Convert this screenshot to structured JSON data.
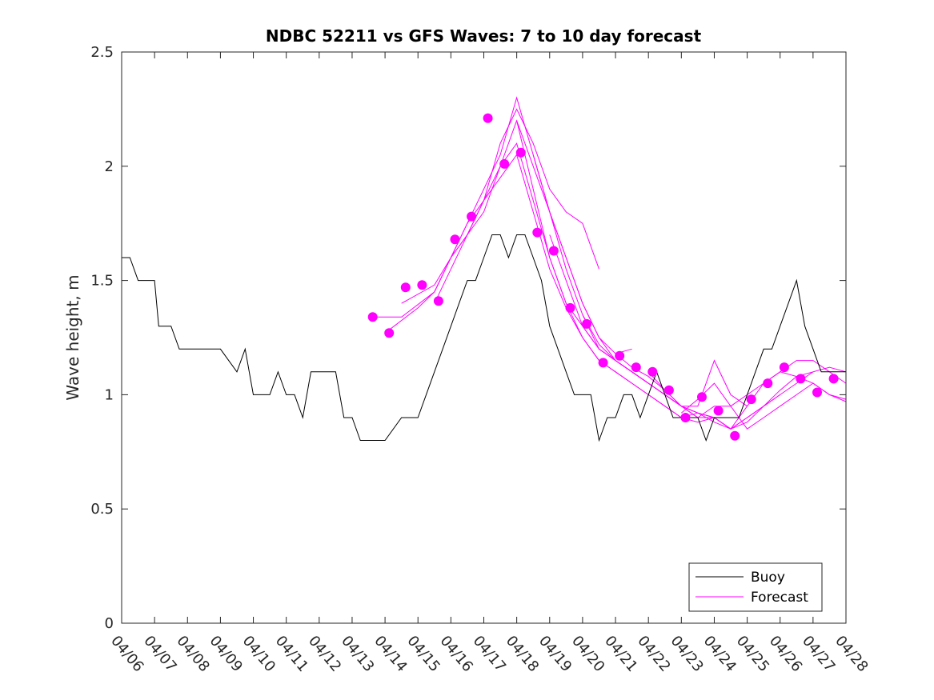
{
  "chart_data": {
    "type": "line",
    "title": "NDBC 52211 vs GFS Waves: 7 to 10 day forecast",
    "xlabel": "",
    "ylabel": "Wave height, m",
    "xlim": [
      "04/06",
      "04/28"
    ],
    "ylim": [
      0,
      2.5
    ],
    "x_ticks": [
      "04/06",
      "04/07",
      "04/08",
      "04/09",
      "04/10",
      "04/11",
      "04/12",
      "04/13",
      "04/14",
      "04/15",
      "04/16",
      "04/17",
      "04/18",
      "04/19",
      "04/20",
      "04/21",
      "04/22",
      "04/23",
      "04/24",
      "04/25",
      "04/26",
      "04/27",
      "04/28"
    ],
    "y_ticks": [
      "0",
      "0.5",
      "1",
      "1.5",
      "2",
      "2.5"
    ],
    "grid": false,
    "legend": {
      "position": "bottom-right",
      "entries": [
        "Buoy",
        "Forecast"
      ]
    },
    "colors": {
      "buoy": "#000000",
      "forecast": "#ff00ff"
    },
    "series": [
      {
        "name": "Buoy",
        "style": "line",
        "x": [
          "04/06 00:00",
          "04/06 06:00",
          "04/06 12:00",
          "04/07 00:00",
          "04/07 03:00",
          "04/07 12:00",
          "04/07 18:00",
          "04/08 00:00",
          "04/08 06:00",
          "04/08 12:00",
          "04/09 00:00",
          "04/09 12:00",
          "04/09 18:00",
          "04/10 00:00",
          "04/10 12:00",
          "04/10 18:00",
          "04/11 00:00",
          "04/11 06:00",
          "04/11 12:00",
          "04/11 18:00",
          "04/12 00:00",
          "04/12 12:00",
          "04/12 18:00",
          "04/13 00:00",
          "04/13 06:00",
          "04/13 12:00",
          "04/13 18:00",
          "04/14 00:00",
          "04/14 12:00",
          "04/14 18:00",
          "04/15 00:00",
          "04/15 06:00",
          "04/15 12:00",
          "04/15 18:00",
          "04/16 00:00",
          "04/16 06:00",
          "04/16 12:00",
          "04/16 18:00",
          "04/17 00:00",
          "04/17 06:00",
          "04/17 12:00",
          "04/17 18:00",
          "04/18 00:00",
          "04/18 06:00",
          "04/18 12:00",
          "04/18 18:00",
          "04/19 00:00",
          "04/19 06:00",
          "04/19 12:00",
          "04/19 18:00",
          "04/20 00:00",
          "04/20 06:00",
          "04/20 12:00",
          "04/20 18:00",
          "04/21 00:00",
          "04/21 06:00",
          "04/21 12:00",
          "04/21 18:00",
          "04/22 00:00",
          "04/22 06:00",
          "04/22 12:00",
          "04/22 18:00",
          "04/23 00:00",
          "04/23 06:00",
          "04/23 12:00",
          "04/23 18:00",
          "04/24 00:00",
          "04/24 06:00",
          "04/24 12:00",
          "04/24 18:00",
          "04/25 00:00",
          "04/25 06:00",
          "04/25 12:00",
          "04/25 18:00",
          "04/26 00:00",
          "04/26 06:00",
          "04/26 12:00",
          "04/26 18:00",
          "04/27 00:00",
          "04/27 06:00",
          "04/27 12:00",
          "04/27 18:00",
          "04/28 00:00"
        ],
        "y": [
          1.6,
          1.6,
          1.5,
          1.5,
          1.3,
          1.3,
          1.2,
          1.2,
          1.2,
          1.2,
          1.2,
          1.1,
          1.2,
          1.0,
          1.0,
          1.1,
          1.0,
          1.0,
          0.9,
          1.1,
          1.1,
          1.1,
          0.9,
          0.9,
          0.8,
          0.8,
          0.8,
          0.8,
          0.9,
          0.9,
          0.9,
          1.0,
          1.1,
          1.2,
          1.3,
          1.4,
          1.5,
          1.5,
          1.6,
          1.7,
          1.7,
          1.6,
          1.7,
          1.7,
          1.6,
          1.5,
          1.3,
          1.2,
          1.1,
          1.0,
          1.0,
          1.0,
          0.8,
          0.9,
          0.9,
          1.0,
          1.0,
          0.9,
          1.0,
          1.1,
          1.0,
          0.9,
          0.9,
          0.9,
          0.9,
          0.8,
          0.9,
          0.9,
          0.9,
          0.9,
          1.0,
          1.1,
          1.2,
          1.2,
          1.3,
          1.4,
          1.5,
          1.3,
          1.2,
          1.1,
          1.1,
          1.1,
          1.1
        ]
      },
      {
        "name": "Forecast",
        "style": "markers",
        "x": [
          "04/13 15:00",
          "04/14 03:00",
          "04/14 15:00",
          "04/15 03:00",
          "04/15 15:00",
          "04/16 03:00",
          "04/16 15:00",
          "04/17 03:00",
          "04/17 15:00",
          "04/18 03:00",
          "04/18 15:00",
          "04/19 03:00",
          "04/19 15:00",
          "04/20 03:00",
          "04/20 15:00",
          "04/21 03:00",
          "04/21 15:00",
          "04/22 03:00",
          "04/22 15:00",
          "04/23 03:00",
          "04/23 15:00",
          "04/24 03:00",
          "04/24 15:00",
          "04/25 03:00",
          "04/25 15:00",
          "04/26 03:00",
          "04/26 15:00",
          "04/27 03:00",
          "04/27 15:00"
        ],
        "y": [
          1.34,
          1.27,
          1.47,
          1.48,
          1.41,
          1.68,
          1.78,
          2.21,
          2.01,
          2.06,
          1.71,
          1.63,
          1.38,
          1.31,
          1.14,
          1.17,
          1.12,
          1.1,
          1.02,
          0.9,
          0.99,
          0.93,
          0.82,
          0.98,
          1.05,
          1.12,
          1.07,
          1.01,
          1.07
        ]
      }
    ],
    "forecast_runs": [
      {
        "x": [
          "04/13 15:00",
          "04/14 12:00",
          "04/15 12:00",
          "04/16 00:00",
          "04/16 12:00",
          "04/17 00:00",
          "04/17 12:00",
          "04/18 00:00",
          "04/18 12:00",
          "04/19 00:00",
          "04/19 12:00",
          "04/20 00:00",
          "04/20 12:00"
        ],
        "y": [
          1.34,
          1.34,
          1.45,
          1.6,
          1.7,
          1.85,
          2.1,
          2.25,
          2.1,
          1.9,
          1.8,
          1.75,
          1.55
        ]
      },
      {
        "x": [
          "04/14 00:00",
          "04/15 00:00",
          "04/15 12:00",
          "04/16 00:00",
          "04/16 12:00",
          "04/17 00:00",
          "04/17 12:00",
          "04/18 00:00",
          "04/18 12:00",
          "04/19 00:00",
          "04/19 12:00",
          "04/20 00:00",
          "04/20 12:00",
          "04/21 00:00",
          "04/21 12:00"
        ],
        "y": [
          1.27,
          1.38,
          1.45,
          1.6,
          1.75,
          1.9,
          2.05,
          2.3,
          2.05,
          1.8,
          1.6,
          1.4,
          1.25,
          1.18,
          1.2
        ]
      },
      {
        "x": [
          "04/14 12:00",
          "04/15 12:00",
          "04/16 00:00",
          "04/16 12:00",
          "04/17 00:00",
          "04/17 12:00",
          "04/18 00:00",
          "04/18 12:00",
          "04/19 00:00",
          "04/19 12:00",
          "04/20 00:00",
          "04/20 12:00",
          "04/21 00:00",
          "04/21 12:00",
          "04/22 00:00",
          "04/22 12:00"
        ],
        "y": [
          1.4,
          1.48,
          1.6,
          1.7,
          1.85,
          2.0,
          2.2,
          2.0,
          1.8,
          1.6,
          1.4,
          1.25,
          1.15,
          1.1,
          1.05,
          1.0
        ]
      },
      {
        "x": [
          "04/15 12:00",
          "04/16 00:00",
          "04/16 12:00",
          "04/17 00:00",
          "04/17 12:00",
          "04/18 00:00",
          "04/18 12:00",
          "04/19 00:00",
          "04/19 12:00",
          "04/20 00:00",
          "04/20 12:00",
          "04/21 00:00",
          "04/21 12:00",
          "04/22 00:00",
          "04/22 12:00",
          "04/23 00:00",
          "04/23 12:00"
        ],
        "y": [
          1.4,
          1.55,
          1.7,
          1.8,
          2.0,
          2.1,
          1.85,
          1.6,
          1.4,
          1.25,
          1.15,
          1.1,
          1.05,
          1.0,
          0.95,
          0.9,
          0.92
        ]
      },
      {
        "x": [
          "04/16 00:00",
          "04/16 12:00",
          "04/17 00:00",
          "04/17 12:00",
          "04/18 00:00",
          "04/18 12:00",
          "04/19 00:00",
          "04/19 12:00",
          "04/20 00:00",
          "04/20 12:00",
          "04/21 00:00",
          "04/21 12:00",
          "04/22 00:00",
          "04/22 12:00",
          "04/23 00:00",
          "04/23 12:00",
          "04/24 00:00"
        ],
        "y": [
          1.6,
          1.75,
          1.85,
          1.95,
          2.05,
          1.8,
          1.55,
          1.38,
          1.25,
          1.15,
          1.1,
          1.05,
          1.0,
          0.95,
          0.9,
          0.88,
          0.9
        ]
      },
      {
        "x": [
          "04/18 00:00",
          "04/18 12:00",
          "04/19 00:00",
          "04/19 12:00",
          "04/20 00:00",
          "04/20 12:00",
          "04/21 00:00",
          "04/21 12:00",
          "04/22 00:00",
          "04/22 12:00",
          "04/23 00:00",
          "04/23 12:00",
          "04/24 00:00",
          "04/24 12:00",
          "04/25 00:00"
        ],
        "y": [
          2.2,
          1.9,
          1.6,
          1.4,
          1.3,
          1.2,
          1.15,
          1.1,
          1.05,
          1.0,
          0.95,
          0.95,
          1.15,
          1.0,
          0.95
        ]
      },
      {
        "x": [
          "04/18 12:00",
          "04/19 00:00",
          "04/19 12:00",
          "04/20 00:00",
          "04/20 12:00",
          "04/21 00:00",
          "04/21 12:00",
          "04/22 00:00",
          "04/22 12:00",
          "04/23 00:00",
          "04/23 12:00",
          "04/24 00:00",
          "04/24 12:00",
          "04/25 00:00",
          "04/25 12:00",
          "04/26 00:00"
        ],
        "y": [
          2.05,
          1.8,
          1.55,
          1.35,
          1.22,
          1.15,
          1.1,
          1.05,
          1.0,
          0.95,
          0.92,
          0.88,
          0.85,
          0.9,
          0.95,
          1.0
        ]
      },
      {
        "x": [
          "04/19 00:00",
          "04/19 12:00",
          "04/20 00:00",
          "04/20 12:00",
          "04/21 00:00",
          "04/21 12:00",
          "04/22 00:00",
          "04/22 12:00",
          "04/23 00:00",
          "04/23 12:00",
          "04/24 00:00",
          "04/24 12:00",
          "04/25 00:00",
          "04/25 12:00",
          "04/26 00:00",
          "04/26 12:00",
          "04/27 00:00"
        ],
        "y": [
          1.7,
          1.5,
          1.3,
          1.2,
          1.15,
          1.1,
          1.05,
          1.0,
          0.95,
          0.9,
          0.9,
          0.85,
          0.88,
          0.95,
          1.02,
          1.08,
          1.1
        ]
      },
      {
        "x": [
          "04/20 00:00",
          "04/20 12:00",
          "04/21 00:00",
          "04/21 12:00",
          "04/22 00:00",
          "04/22 12:00",
          "04/23 00:00",
          "04/23 12:00",
          "04/24 00:00",
          "04/24 12:00",
          "04/25 00:00",
          "04/25 12:00",
          "04/26 00:00",
          "04/26 12:00",
          "04/27 00:00",
          "04/27 12:00",
          "04/28 00:00"
        ],
        "y": [
          1.35,
          1.2,
          1.15,
          1.1,
          1.05,
          1.0,
          0.95,
          0.92,
          0.9,
          0.85,
          0.9,
          0.95,
          1.0,
          1.05,
          1.1,
          1.12,
          1.1
        ]
      },
      {
        "x": [
          "04/21 00:00",
          "04/21 12:00",
          "04/22 00:00",
          "04/22 12:00",
          "04/23 00:00",
          "04/23 12:00",
          "04/24 00:00",
          "04/24 12:00",
          "04/25 00:00",
          "04/25 12:00",
          "04/26 00:00",
          "04/26 12:00",
          "04/27 00:00",
          "04/27 12:00",
          "04/28 00:00"
        ],
        "y": [
          1.18,
          1.12,
          1.08,
          1.02,
          0.95,
          0.9,
          0.95,
          0.95,
          1.0,
          1.05,
          1.1,
          1.15,
          1.15,
          1.1,
          1.05
        ]
      },
      {
        "x": [
          "04/22 00:00",
          "04/22 12:00",
          "04/23 00:00",
          "04/23 12:00",
          "04/24 00:00",
          "04/24 12:00",
          "04/25 00:00",
          "04/25 12:00",
          "04/26 00:00",
          "04/26 12:00",
          "04/27 00:00",
          "04/27 12:00",
          "04/28 00:00"
        ],
        "y": [
          1.1,
          1.02,
          0.95,
          0.92,
          0.9,
          0.85,
          0.95,
          1.05,
          1.1,
          1.08,
          1.05,
          1.0,
          0.98
        ]
      },
      {
        "x": [
          "04/23 00:00",
          "04/23 12:00",
          "04/24 00:00",
          "04/24 12:00",
          "04/25 00:00",
          "04/25 12:00",
          "04/26 00:00",
          "04/26 12:00",
          "04/27 00:00",
          "04/27 12:00",
          "04/28 00:00"
        ],
        "y": [
          0.92,
          0.98,
          1.05,
          0.95,
          0.85,
          0.9,
          0.95,
          1.0,
          1.05,
          1.0,
          0.97
        ]
      }
    ]
  }
}
